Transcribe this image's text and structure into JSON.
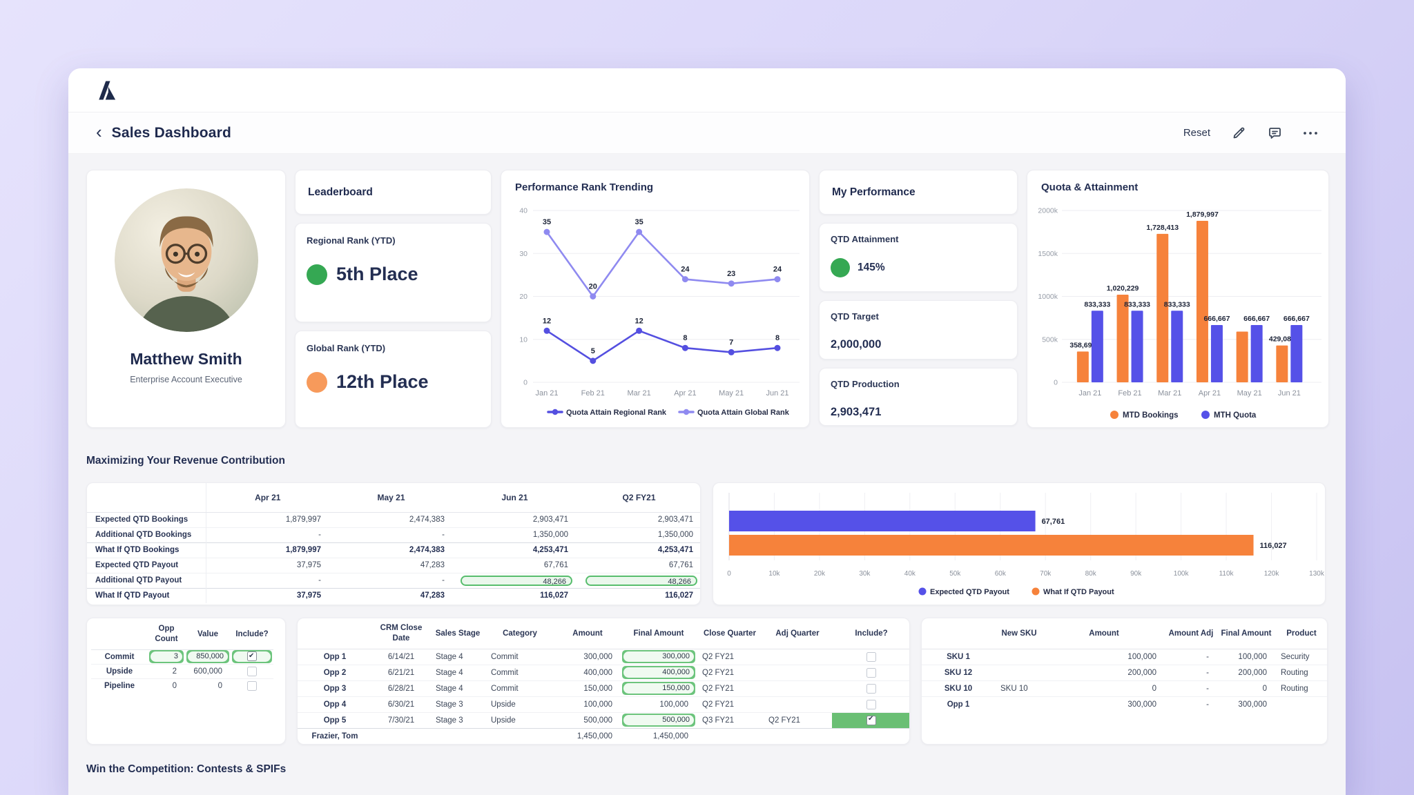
{
  "app": {
    "title": "Sales Dashboard",
    "back_chevron": "‹",
    "reset_label": "Reset",
    "logo_name": "anaplan-logo",
    "icons": [
      "edit-pencil",
      "comment-bubble",
      "more-ellipsis"
    ]
  },
  "colors": {
    "accent_green": "#35a853",
    "accent_orange_dot": "#f79a5b",
    "bar_orange": "#f6823b",
    "bar_blue": "#5551e8",
    "line_regional": "#544fe0",
    "line_global": "#8f8af0",
    "pill_border": "#57bd6d",
    "pill_bg": "#eaf7ec",
    "green_cell": "#6abf74",
    "link_purple": "#7b70f0"
  },
  "profile": {
    "name": "Matthew Smith",
    "role": "Enterprise Account Executive"
  },
  "leaderboard": {
    "title": "Leaderboard",
    "cards": [
      {
        "label": "Regional Rank (YTD)",
        "value": "5th Place",
        "dot_color": "#35a853"
      },
      {
        "label": "Global Rank (YTD)",
        "value": "12th Place",
        "dot_color": "#f79a5b"
      }
    ]
  },
  "my_performance": {
    "title": "My Performance",
    "cards": [
      {
        "label": "QTD Attainment",
        "value": "145%",
        "dot_color": "#35a853"
      },
      {
        "label": "QTD Target",
        "value": "2,000,000"
      },
      {
        "label": "QTD Production",
        "value": "2,903,471"
      }
    ]
  },
  "section_headings": {
    "revenue": "Maximizing Your Revenue Contribution",
    "competition": "Win the Competition: Contests & SPIFs"
  },
  "chart_data": [
    {
      "id": "rank_trending",
      "type": "line",
      "title": "Performance Rank Trending",
      "categories": [
        "Jan 21",
        "Feb 21",
        "Mar 21",
        "Apr 21",
        "May 21",
        "Jun 21"
      ],
      "series": [
        {
          "name": "Quota Attain Regional Rank",
          "color": "#544fe0",
          "values": [
            12,
            5,
            12,
            8,
            7,
            8
          ]
        },
        {
          "name": "Quota Attain Global Rank",
          "color": "#8f8af0",
          "values": [
            35,
            20,
            35,
            24,
            23,
            24
          ]
        }
      ],
      "ylim": [
        0,
        40
      ],
      "yticks": [
        0,
        10,
        20,
        30,
        40
      ],
      "grid": true,
      "legend_position": "bottom"
    },
    {
      "id": "quota_attainment",
      "type": "bar",
      "title": "Quota & Attainment",
      "categories": [
        "Jan 21",
        "Feb 21",
        "Mar 21",
        "Apr 21",
        "May 21",
        "Jun 21"
      ],
      "series": [
        {
          "name": "MTD Bookings",
          "color": "#f6823b",
          "values": [
            358696,
            1020229,
            1728413,
            1879997,
            590000,
            429088
          ],
          "labels": [
            "358,696",
            "1,020,229",
            "1,728,413",
            "1,879,997",
            "",
            "429,088"
          ]
        },
        {
          "name": "MTH Quota",
          "color": "#5551e8",
          "values": [
            833333,
            833333,
            833333,
            666667,
            666667,
            666667
          ],
          "labels": [
            "833,333",
            "833,333",
            "833,333",
            "666,667",
            "666,667",
            "666,667"
          ]
        }
      ],
      "ylim": [
        0,
        2000000
      ],
      "ytick_labels": [
        "0",
        "500k",
        "1000k",
        "1500k",
        "2000k"
      ],
      "grid": true,
      "legend_position": "bottom"
    },
    {
      "id": "payout_compare",
      "type": "hbar",
      "bars": [
        {
          "name": "Expected QTD Payout",
          "color": "#5551e8",
          "value": 67761,
          "label": "67,761"
        },
        {
          "name": "What If QTD Payout",
          "color": "#f6823b",
          "value": 116027,
          "label": "116,027"
        }
      ],
      "xlim": [
        0,
        130000
      ],
      "xtick_labels": [
        "0",
        "10k",
        "20k",
        "30k",
        "40k",
        "50k",
        "60k",
        "70k",
        "80k",
        "90k",
        "100k",
        "110k",
        "120k",
        "130k"
      ],
      "grid": true,
      "legend_position": "bottom"
    }
  ],
  "revenue_table": {
    "columns": [
      "Apr 21",
      "May 21",
      "Jun 21",
      "Q2 FY21"
    ],
    "rows": [
      {
        "label": "Expected QTD Bookings",
        "indent": true,
        "bold": false,
        "values": [
          "1,879,997",
          "2,474,383",
          "2,903,471",
          "2,903,471"
        ]
      },
      {
        "label": "Additional QTD Bookings",
        "indent": true,
        "bold": false,
        "values": [
          "-",
          "-",
          "1,350,000",
          "1,350,000"
        ]
      },
      {
        "label": "What If QTD Bookings",
        "indent": false,
        "bold": true,
        "values": [
          "1,879,997",
          "2,474,383",
          "4,253,471",
          "4,253,471"
        ]
      },
      {
        "label": "Expected QTD Payout",
        "indent": true,
        "bold": false,
        "values": [
          "37,975",
          "47,283",
          "67,761",
          "67,761"
        ]
      },
      {
        "label": "Additional QTD Payout",
        "indent": true,
        "bold": false,
        "values": [
          "-",
          "-",
          "48,266",
          "48,266"
        ],
        "pill_cols": [
          2,
          3
        ]
      },
      {
        "label": "What If QTD Payout",
        "indent": false,
        "bold": true,
        "values": [
          "37,975",
          "47,283",
          "116,027",
          "116,027"
        ]
      }
    ]
  },
  "opp_summary_table": {
    "columns": [
      "Opp Count",
      "Value",
      "Include?"
    ],
    "rows": [
      {
        "label": "Commit",
        "opp_count": "3",
        "value": "850,000",
        "include": true,
        "highlight": true
      },
      {
        "label": "Upside",
        "opp_count": "2",
        "value": "600,000",
        "include": false,
        "highlight": false
      },
      {
        "label": "Pipeline",
        "opp_count": "0",
        "value": "0",
        "include": false,
        "highlight": false
      }
    ]
  },
  "crm_table": {
    "columns": [
      "CRM Close Date",
      "Sales Stage",
      "Category",
      "Amount",
      "Final Amount",
      "Close Quarter",
      "Adj Quarter",
      "Include?"
    ],
    "rows": [
      {
        "label": "Opp 1",
        "close_date": "6/14/21",
        "stage": "Stage 4",
        "category": "Commit",
        "amount": "300,000",
        "final_amount": "300,000",
        "final_pill": true,
        "close_quarter": "Q2 FY21",
        "adj_quarter": "",
        "include": false,
        "include_highlight": false
      },
      {
        "label": "Opp 2",
        "close_date": "6/21/21",
        "stage": "Stage 4",
        "category": "Commit",
        "amount": "400,000",
        "final_amount": "400,000",
        "final_pill": true,
        "close_quarter": "Q2 FY21",
        "adj_quarter": "",
        "include": false,
        "include_highlight": false
      },
      {
        "label": "Opp 3",
        "close_date": "6/28/21",
        "stage": "Stage 4",
        "category": "Commit",
        "amount": "150,000",
        "final_amount": "150,000",
        "final_pill": true,
        "close_quarter": "Q2 FY21",
        "adj_quarter": "",
        "include": false,
        "include_highlight": false
      },
      {
        "label": "Opp 4",
        "close_date": "6/30/21",
        "stage": "Stage 3",
        "category": "Upside",
        "amount": "100,000",
        "final_amount": "100,000",
        "final_pill": false,
        "close_quarter": "Q2 FY21",
        "adj_quarter": "",
        "include": false,
        "include_highlight": false
      },
      {
        "label": "Opp 5",
        "close_date": "7/30/21",
        "stage": "Stage 3",
        "category": "Upside",
        "amount": "500,000",
        "final_amount": "500,000",
        "final_pill": true,
        "close_quarter": "Q3 FY21",
        "adj_quarter": "Q2 FY21",
        "include": true,
        "include_highlight": true
      },
      {
        "label": "Frazier, Tom",
        "close_date": "",
        "stage": "",
        "category": "",
        "amount": "1,450,000",
        "final_amount": "1,450,000",
        "final_pill": false,
        "close_quarter": "",
        "adj_quarter": "",
        "include": null,
        "total_row": true
      }
    ]
  },
  "sku_table": {
    "columns": [
      "New SKU",
      "Amount",
      "Amount Adj",
      "Final Amount",
      "Product"
    ],
    "rows": [
      {
        "label": "SKU 1",
        "new_sku": "",
        "amount": "100,000",
        "amount_adj": "-",
        "final_amount": "100,000",
        "product": "Security"
      },
      {
        "label": "SKU 12",
        "new_sku": "",
        "amount": "200,000",
        "amount_adj": "-",
        "final_amount": "200,000",
        "product": "Routing"
      },
      {
        "label": "SKU 10",
        "new_sku": "SKU 10",
        "new_sku_link": true,
        "amount": "0",
        "amount_adj": "-",
        "final_amount": "0",
        "product": "Routing"
      },
      {
        "label": "Opp 1",
        "new_sku": "",
        "amount": "300,000",
        "amount_adj": "-",
        "final_amount": "300,000",
        "product": ""
      }
    ]
  }
}
